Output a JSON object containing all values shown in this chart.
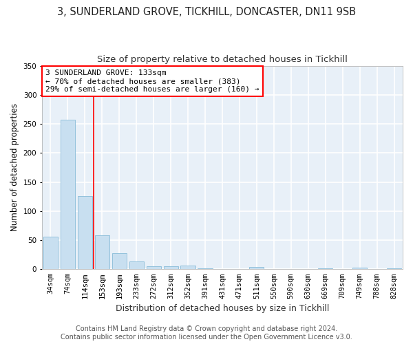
{
  "title1": "3, SUNDERLAND GROVE, TICKHILL, DONCASTER, DN11 9SB",
  "title2": "Size of property relative to detached houses in Tickhill",
  "xlabel": "Distribution of detached houses by size in Tickhill",
  "ylabel": "Number of detached properties",
  "categories": [
    "34sqm",
    "74sqm",
    "114sqm",
    "153sqm",
    "193sqm",
    "233sqm",
    "272sqm",
    "312sqm",
    "352sqm",
    "391sqm",
    "431sqm",
    "471sqm",
    "511sqm",
    "550sqm",
    "590sqm",
    "630sqm",
    "669sqm",
    "709sqm",
    "749sqm",
    "788sqm",
    "828sqm"
  ],
  "values": [
    56,
    257,
    126,
    58,
    27,
    13,
    5,
    5,
    6,
    1,
    0,
    0,
    4,
    0,
    0,
    0,
    2,
    0,
    3,
    0,
    2
  ],
  "bar_color": "#c8dff0",
  "bar_edge_color": "#88bbd8",
  "red_line_index": 2.5,
  "annotation_text": "3 SUNDERLAND GROVE: 133sqm\n← 70% of detached houses are smaller (383)\n29% of semi-detached houses are larger (160) →",
  "annotation_box_color": "white",
  "annotation_box_edge": "red",
  "ylim": [
    0,
    350
  ],
  "yticks": [
    0,
    50,
    100,
    150,
    200,
    250,
    300,
    350
  ],
  "footer": "Contains HM Land Registry data © Crown copyright and database right 2024.\nContains public sector information licensed under the Open Government Licence v3.0.",
  "bg_color": "#ffffff",
  "plot_bg_color": "#e8f0f8",
  "grid_color": "#ffffff",
  "title1_fontsize": 10.5,
  "title2_fontsize": 9.5,
  "xlabel_fontsize": 9,
  "ylabel_fontsize": 8.5,
  "tick_fontsize": 7.5,
  "annotation_fontsize": 8,
  "footer_fontsize": 7
}
